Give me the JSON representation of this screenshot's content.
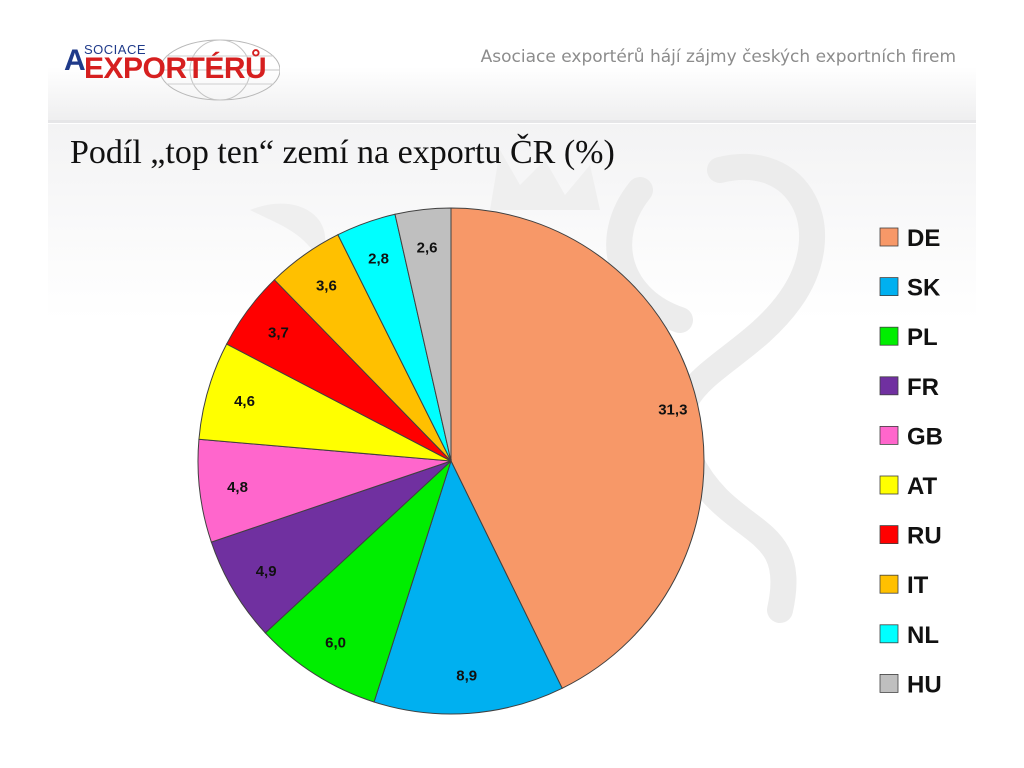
{
  "header": {
    "logo_small": "SOCIACE",
    "logo_a": "A",
    "logo_main": "EXPORTÉRŮ",
    "tagline": "Asociace exportérů hájí zájmy českých exportních firem"
  },
  "slide": {
    "title": "Podíl „top ten“ zemí na exportu ČR (%)"
  },
  "chart_data": {
    "type": "pie",
    "categories": [
      "DE",
      "SK",
      "PL",
      "FR",
      "GB",
      "AT",
      "RU",
      "IT",
      "NL",
      "HU"
    ],
    "values": [
      31.3,
      8.9,
      6.0,
      4.9,
      4.8,
      4.6,
      3.7,
      3.6,
      2.8,
      2.6
    ],
    "value_labels": [
      "31,3",
      "8,9",
      "6,0",
      "4,9",
      "4,8",
      "4,6",
      "3,7",
      "3,6",
      "2,8",
      "2,6"
    ],
    "colors": [
      "#f79868",
      "#00b0f0",
      "#00ee00",
      "#7030a0",
      "#ff66cc",
      "#ffff00",
      "#ff0000",
      "#ffc000",
      "#00ffff",
      "#bfbfbf"
    ],
    "start_angle": "12 o'clock",
    "direction": "clockwise",
    "legend_position": "right"
  }
}
